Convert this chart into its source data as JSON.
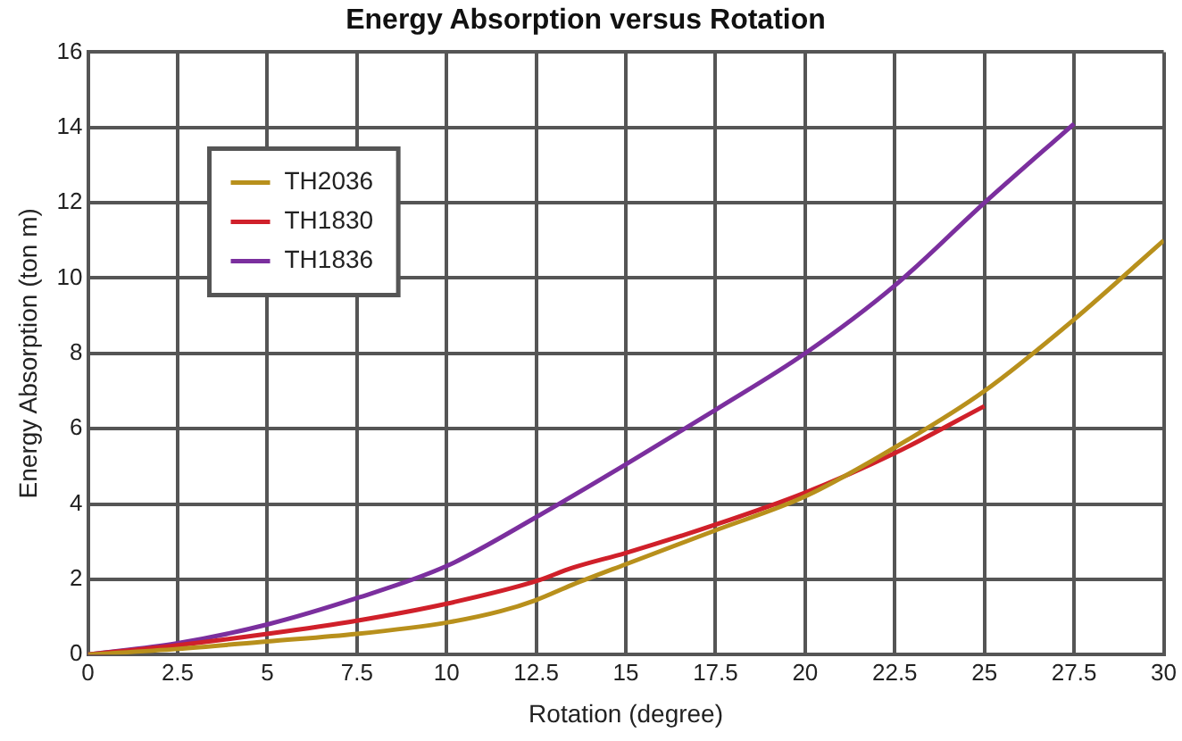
{
  "chart_data": {
    "type": "line",
    "title": "Energy Absorption versus Rotation",
    "xlabel": "Rotation (degree)",
    "ylabel": "Energy Absorption (ton m)",
    "xlim": [
      0,
      30
    ],
    "xticks": [
      0,
      2.5,
      5,
      7.5,
      10,
      12.5,
      15,
      17.5,
      20,
      22.5,
      25,
      27.5,
      30
    ],
    "ylim": [
      0,
      16
    ],
    "yticks": [
      0,
      2,
      4,
      6,
      8,
      10,
      12,
      14,
      16
    ],
    "grid": true,
    "legend": "top left",
    "marker": "none",
    "line_style": "solid",
    "series": [
      {
        "name": "TH2036",
        "color": "#b8901c",
        "x": [
          0,
          2.5,
          5,
          7.5,
          10,
          11.5,
          12.5,
          13.5,
          15,
          17.5,
          20,
          22.5,
          25,
          27.5,
          30
        ],
        "values": [
          0,
          0.15,
          0.35,
          0.55,
          0.85,
          1.15,
          1.45,
          1.85,
          2.4,
          3.3,
          4.2,
          5.5,
          7.0,
          8.9,
          11.0
        ]
      },
      {
        "name": "TH1830",
        "color": "#d0202a",
        "x": [
          0,
          2.5,
          5,
          7.5,
          10,
          12.5,
          13.5,
          15,
          17.5,
          20,
          22.5,
          25
        ],
        "values": [
          0,
          0.25,
          0.55,
          0.9,
          1.35,
          1.95,
          2.3,
          2.7,
          3.45,
          4.3,
          5.35,
          6.6
        ]
      },
      {
        "name": "TH1836",
        "color": "#7b2f9e",
        "x": [
          0,
          2.5,
          5,
          7.5,
          10,
          12.5,
          15,
          17.5,
          20,
          22.5,
          25,
          27.5
        ],
        "values": [
          0,
          0.3,
          0.8,
          1.5,
          2.35,
          3.65,
          5.05,
          6.5,
          8.0,
          9.8,
          12.0,
          14.1
        ]
      }
    ]
  }
}
